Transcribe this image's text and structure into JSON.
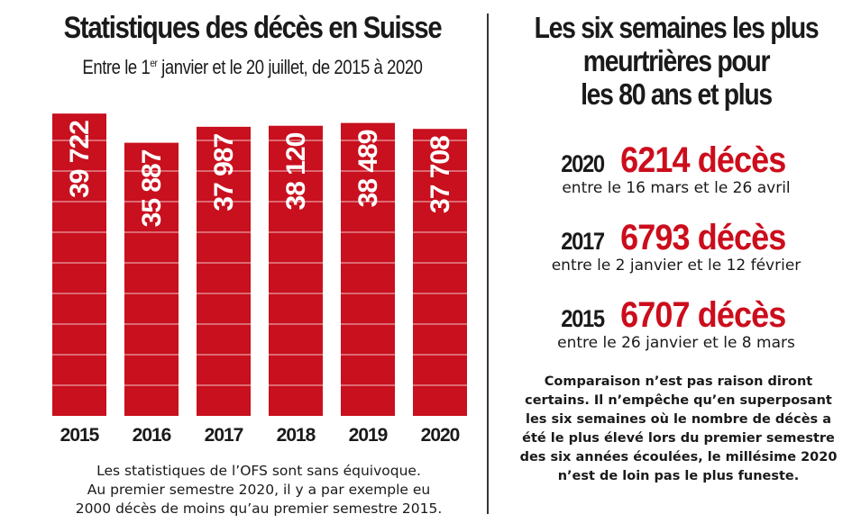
{
  "left": {
    "title": "Statistiques des décès en Suisse",
    "subtitle_pre": "Entre le 1",
    "subtitle_sup": "er",
    "subtitle_post": " janvier et le 20 juillet, de 2015 à 2020",
    "caption_lines": [
      "Les statistiques de l’OFS sont sans équivoque.",
      "Au premier semestre 2020, il y a par exemple eu",
      "2000 décès de moins qu’au premier semestre 2015."
    ]
  },
  "chart_data": {
    "type": "bar",
    "title": "Statistiques des décès en Suisse",
    "subtitle": "Entre le 1er janvier et le 20 juillet, de 2015 à 2020",
    "categories": [
      "2015",
      "2016",
      "2017",
      "2018",
      "2019",
      "2020"
    ],
    "values": [
      39722,
      35887,
      37987,
      38120,
      38489,
      37708
    ],
    "labels": [
      "39 722",
      "35 887",
      "37 987",
      "38 120",
      "38 489",
      "37 708"
    ],
    "xlabel": "",
    "ylabel": "",
    "bar_color": "#c8101e",
    "gridline_color": "#ffffff",
    "grid": true,
    "legend": "none"
  },
  "right": {
    "title_lines": [
      "Les six semaines les plus",
      "meurtrières pour",
      "les 80 ans et plus"
    ],
    "entries": [
      {
        "year": "2020",
        "deaths": "6214 décès",
        "range": "entre le 16 mars et le 26 avril"
      },
      {
        "year": "2017",
        "deaths": "6793 décès",
        "range": "entre le 2 janvier et le 12 février"
      },
      {
        "year": "2015",
        "deaths": "6707 décès",
        "range": "entre le 26 janvier et le 8 mars"
      }
    ],
    "comment_lines": [
      "Comparaison n’est pas raison diront",
      "certains. Il n’empêche qu’en superposant",
      "les six semaines où le nombre de décès a",
      "été le plus élevé lors du premier semestre",
      "des six années écoulées, le millésime 2020",
      "n’est de loin pas le plus funeste."
    ]
  },
  "colors": {
    "accent_red": "#cc0d1c",
    "bar_red": "#c8101e",
    "text": "#1a1a1a"
  }
}
